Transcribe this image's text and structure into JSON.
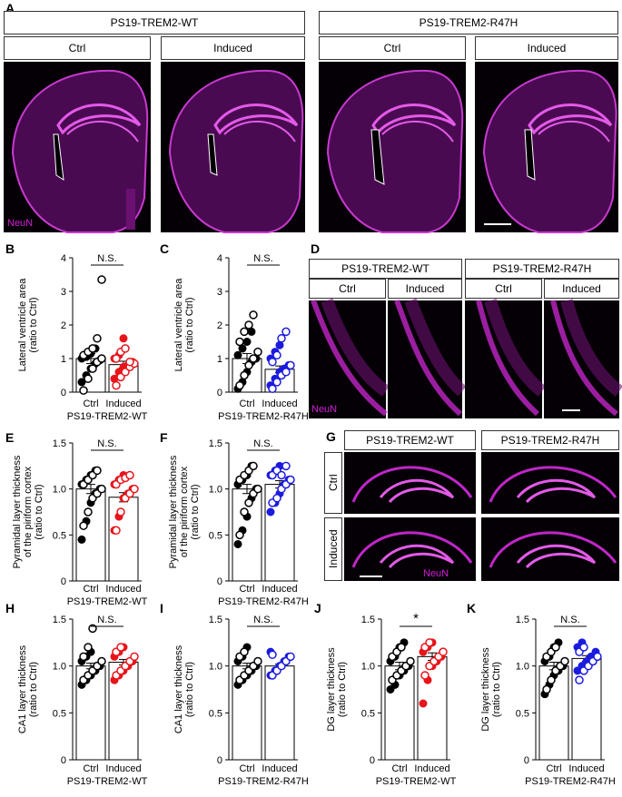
{
  "panel_letters": {
    "A": "A",
    "B": "B",
    "C": "C",
    "D": "D",
    "E": "E",
    "F": "F",
    "G": "G",
    "H": "H",
    "I": "I",
    "J": "J",
    "K": "K"
  },
  "genotypes": {
    "wt": "PS19-TREM2-WT",
    "r47h": "PS19-TREM2-R47H"
  },
  "conditions": {
    "ctrl": "Ctrl",
    "induced": "Induced"
  },
  "stain_label": "NeuN",
  "colors": {
    "ctrl_fill": "#000000",
    "wt_induced": "#e8141b",
    "r47h_induced": "#1b1be0",
    "stain": "#d21fd8"
  },
  "chart_data": [
    {
      "id": "B",
      "type": "scatter",
      "ylabel": "Lateral ventricle area\n(ratio to Ctrl)",
      "categories": [
        "Ctrl",
        "Induced"
      ],
      "group_label": "PS19-TREM2-WT",
      "ylim": [
        0,
        4
      ],
      "yticks": [
        "0",
        "1",
        "2",
        "3",
        "4"
      ],
      "sig": "N.S.",
      "bars": [
        1.0,
        0.82
      ],
      "errors": [
        0.15,
        0.1
      ],
      "series": [
        {
          "filled": [
            0.3,
            0.5,
            0.7,
            0.85,
            0.95,
            1.0,
            1.05,
            1.15,
            1.3
          ],
          "open": [
            0.05,
            0.4,
            0.7,
            0.9,
            1.0,
            1.1,
            1.2,
            1.3,
            1.6,
            3.35
          ]
        },
        {
          "filled": [
            0.4,
            0.6,
            0.75,
            0.8,
            0.9,
            1.0,
            1.1,
            1.6
          ],
          "open": [
            0.2,
            0.45,
            0.6,
            0.75,
            0.85,
            1.0,
            1.2,
            1.3,
            0.9
          ]
        }
      ]
    },
    {
      "id": "C",
      "type": "scatter",
      "ylabel": "Lateral ventricle area\n(ratio to Ctrl)",
      "categories": [
        "Ctrl",
        "Induced"
      ],
      "group_label": "PS19-TREM2-R47H",
      "ylim": [
        0,
        4
      ],
      "yticks": [
        "0",
        "1",
        "2",
        "3",
        "4"
      ],
      "sig": "N.S.",
      "bars": [
        1.0,
        0.68
      ],
      "errors": [
        0.15,
        0.1
      ],
      "series": [
        {
          "filled": [
            0.1,
            0.3,
            0.6,
            0.9,
            1.0,
            1.1,
            1.3,
            1.5,
            1.8
          ],
          "open": [
            0.2,
            0.5,
            0.8,
            1.0,
            1.2,
            1.5,
            1.8,
            2.0,
            2.3
          ]
        },
        {
          "filled": [
            0.2,
            0.4,
            0.6,
            0.7,
            0.8,
            1.0,
            1.2,
            1.4
          ],
          "open": [
            0.1,
            0.3,
            0.5,
            0.6,
            0.8,
            0.9,
            1.1,
            1.6,
            1.8
          ]
        }
      ]
    },
    {
      "id": "E",
      "type": "scatter",
      "ylabel": "Pyramidal layer thickness\nof the piriform cortex\n(ratio to Ctrl)",
      "categories": [
        "Ctrl",
        "Induced"
      ],
      "group_label": "PS19-TREM2-WT",
      "ylim": [
        0,
        1.5
      ],
      "yticks": [
        "0",
        "0.5",
        "1.0",
        "1.5"
      ],
      "sig": "N.S.",
      "bars": [
        1.0,
        0.91
      ],
      "errors": [
        0.05,
        0.05
      ],
      "series": [
        {
          "filled": [
            0.45,
            0.65,
            0.85,
            0.95,
            1.0,
            1.05,
            1.1,
            1.15,
            1.2
          ],
          "open": [
            0.6,
            0.75,
            0.9,
            0.95,
            1.0,
            1.05,
            1.1,
            1.15,
            1.2
          ]
        },
        {
          "filled": [
            0.55,
            0.7,
            0.9,
            0.95,
            1.0,
            1.05,
            1.1,
            1.15
          ],
          "open": [
            0.55,
            0.75,
            0.9,
            0.95,
            1.0,
            1.05,
            1.1,
            1.12,
            1.15
          ]
        }
      ]
    },
    {
      "id": "F",
      "type": "scatter",
      "ylabel": "Pyramidal layer thickness\nof the piriform cortex\n(ratio to Ctrl)",
      "categories": [
        "Ctrl",
        "Induced"
      ],
      "group_label": "PS19-TREM2-R47H",
      "ylim": [
        0,
        1.5
      ],
      "yticks": [
        "0",
        "0.5",
        "1.0",
        "1.5"
      ],
      "sig": "N.S.",
      "bars": [
        1.0,
        1.05
      ],
      "errors": [
        0.05,
        0.04
      ],
      "series": [
        {
          "filled": [
            0.4,
            0.55,
            0.7,
            0.9,
            1.0,
            1.05,
            1.1,
            1.15,
            1.25
          ],
          "open": [
            0.5,
            0.75,
            0.85,
            0.95,
            1.0,
            1.1,
            1.15,
            1.2,
            1.25
          ]
        },
        {
          "filled": [
            0.75,
            0.85,
            0.95,
            1.05,
            1.1,
            1.15,
            1.2,
            1.25
          ],
          "open": [
            0.85,
            0.9,
            1.0,
            1.05,
            1.1,
            1.15,
            1.2,
            1.15,
            1.25
          ]
        }
      ]
    },
    {
      "id": "H",
      "type": "scatter",
      "ylabel": "CA1 layer thickness\n(ratio to Ctrl)",
      "categories": [
        "Ctrl",
        "Induced"
      ],
      "group_label": "PS19-TREM2-WT",
      "ylim": [
        0,
        1.5
      ],
      "yticks": [
        "0",
        "0.5",
        "1.0",
        "1.5"
      ],
      "sig": "N.S.",
      "bars": [
        1.0,
        1.04
      ],
      "errors": [
        0.03,
        0.03
      ],
      "series": [
        {
          "filled": [
            0.8,
            0.85,
            0.9,
            0.95,
            1.0,
            1.05,
            1.1,
            1.15
          ],
          "open": [
            0.85,
            0.9,
            0.95,
            1.0,
            1.05,
            1.1,
            1.2,
            1.4
          ]
        },
        {
          "filled": [
            0.85,
            0.9,
            0.95,
            1.0,
            1.05,
            1.1,
            1.15,
            1.2
          ],
          "open": [
            0.9,
            0.95,
            1.0,
            1.05,
            1.1,
            1.15,
            1.2
          ]
        }
      ]
    },
    {
      "id": "I",
      "type": "scatter",
      "ylabel": "CA1 layer thickness\n(ratio to Ctrl)",
      "categories": [
        "Ctrl",
        "Induced"
      ],
      "group_label": "PS19-TREM2-R47H",
      "ylim": [
        0,
        1.5
      ],
      "yticks": [
        "0",
        "0.5",
        "1.0",
        "1.5"
      ],
      "sig": "N.S.",
      "bars": [
        1.0,
        1.0
      ],
      "errors": [
        0.03,
        0.02
      ],
      "series": [
        {
          "filled": [
            0.8,
            0.85,
            0.9,
            0.95,
            1.0,
            1.05,
            1.1,
            1.2
          ],
          "open": [
            0.85,
            0.9,
            0.95,
            1.0,
            1.05,
            1.1,
            1.15
          ]
        },
        {
          "filled": [
            0.9,
            0.95,
            1.0,
            1.05,
            1.1,
            1.15
          ],
          "open": [
            0.9,
            0.95,
            1.0,
            1.05,
            1.1,
            1.12
          ]
        }
      ]
    },
    {
      "id": "J",
      "type": "scatter",
      "ylabel": "DG layer thickness\n(ratio to Ctrl)",
      "categories": [
        "Ctrl",
        "Induced"
      ],
      "group_label": "PS19-TREM2-WT",
      "ylim": [
        0,
        1.5
      ],
      "yticks": [
        "0",
        "0.5",
        "1.0",
        "1.5"
      ],
      "sig": "*",
      "bars": [
        1.0,
        1.1
      ],
      "errors": [
        0.04,
        0.04
      ],
      "series": [
        {
          "filled": [
            0.75,
            0.8,
            0.9,
            0.95,
            1.0,
            1.05,
            1.1,
            1.2,
            1.25
          ],
          "open": [
            0.85,
            0.9,
            0.95,
            1.0,
            1.05,
            1.1,
            1.15,
            1.2
          ]
        },
        {
          "filled": [
            0.6,
            0.85,
            1.0,
            1.05,
            1.1,
            1.15,
            1.2,
            1.25
          ],
          "open": [
            0.9,
            1.0,
            1.05,
            1.1,
            1.15,
            1.2,
            1.25
          ]
        }
      ]
    },
    {
      "id": "K",
      "type": "scatter",
      "ylabel": "DG layer thickness\n(ratio to Ctrl)",
      "categories": [
        "Ctrl",
        "Induced"
      ],
      "group_label": "PS19-TREM2-R47H",
      "ylim": [
        0,
        1.5
      ],
      "yticks": [
        "0",
        "0.5",
        "1.0",
        "1.5"
      ],
      "sig": "N.S.",
      "bars": [
        1.0,
        1.08
      ],
      "errors": [
        0.04,
        0.03
      ],
      "series": [
        {
          "filled": [
            0.7,
            0.8,
            0.9,
            0.95,
            1.0,
            1.05,
            1.1,
            1.2,
            1.25
          ],
          "open": [
            0.75,
            0.85,
            0.95,
            1.0,
            1.05,
            1.1,
            1.15,
            1.2
          ]
        },
        {
          "filled": [
            0.95,
            1.0,
            1.05,
            1.1,
            1.15,
            1.2,
            1.25
          ],
          "open": [
            0.85,
            0.95,
            1.0,
            1.05,
            1.1,
            1.15,
            1.2
          ]
        }
      ]
    }
  ]
}
